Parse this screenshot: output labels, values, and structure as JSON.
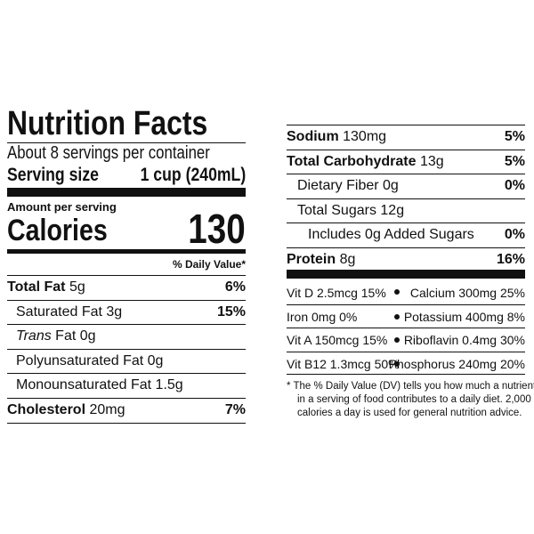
{
  "left": {
    "title": "Nutrition Facts",
    "servings": "About 8 servings per container",
    "serving_size": {
      "label": "Serving size",
      "value": "1 cup (240mL)"
    },
    "amount_per_serving": "Amount per serving",
    "calories": {
      "label": "Calories",
      "value": "130"
    },
    "dv_header": "% Daily Value*",
    "rows": [
      {
        "name": "Total Fat",
        "amount": "5g",
        "dv": "6%"
      },
      {
        "name": "Saturated Fat",
        "amount": "3g",
        "dv": "15%"
      },
      {
        "prefix": "Trans",
        "name": "Fat",
        "amount": "0g"
      },
      {
        "name": "Polyunsaturated Fat",
        "amount": "0g"
      },
      {
        "name": "Monounsaturated Fat",
        "amount": "1.5g"
      },
      {
        "name": "Cholesterol",
        "amount": "20mg",
        "dv": "7%"
      }
    ]
  },
  "right": {
    "rows": [
      {
        "name": "Sodium",
        "amount": "130mg",
        "dv": "5%"
      },
      {
        "name": "Total Carbohydrate",
        "amount": "13g",
        "dv": "5%"
      },
      {
        "name": "Dietary Fiber",
        "amount": "0g",
        "dv": "0%"
      },
      {
        "name": "Total Sugars",
        "amount": "12g"
      },
      {
        "name": "Includes 0g Added Sugars",
        "dv": "0%"
      },
      {
        "name": "Protein",
        "amount": "8g",
        "dv": "16%"
      }
    ],
    "vitamins": [
      [
        "Vit D 2.5mcg 15%",
        "Calcium 300mg 25%"
      ],
      [
        "Iron 0mg 0%",
        "Potassium 400mg 8%"
      ],
      [
        "Vit A 150mcg 15%",
        "Riboflavin 0.4mg 30%"
      ],
      [
        "Vit B12 1.3mcg 50%",
        "Phosphorus 240mg 20%"
      ]
    ],
    "footnote": [
      "* The % Daily Value (DV) tells you how much a nutrient",
      "in a serving of food contributes to a daily diet. 2,000",
      "calories a day is used for general nutrition advice."
    ]
  }
}
